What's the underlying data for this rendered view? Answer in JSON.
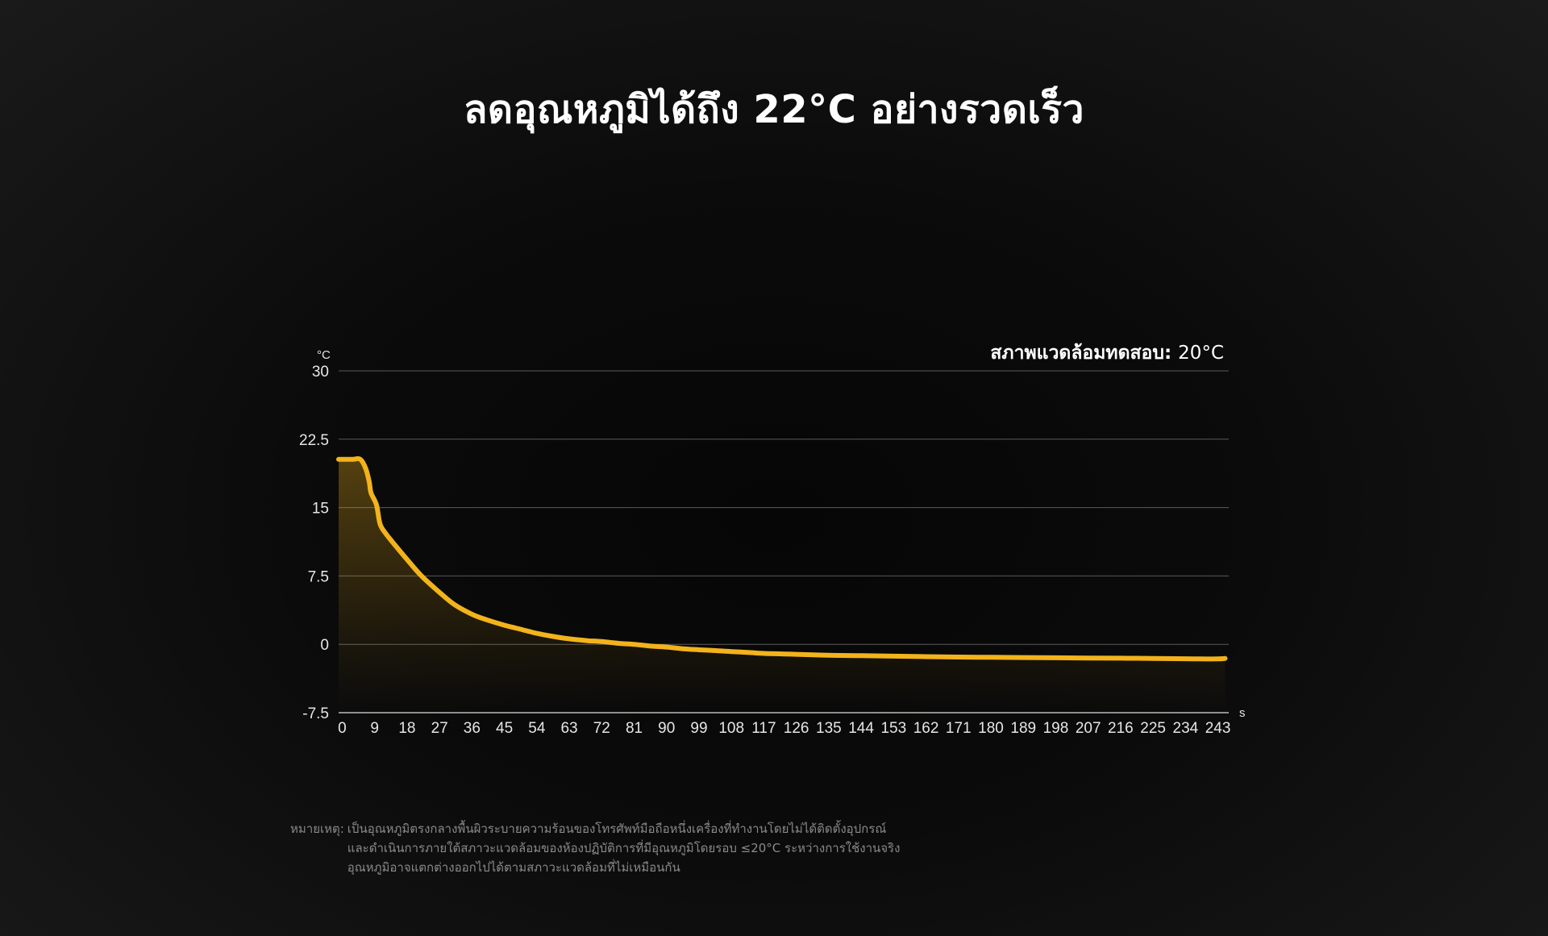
{
  "header": {
    "title": "ลดอุณหภูมิได้ถึง 22°C อย่างรวดเร็ว"
  },
  "environment": {
    "label": "สภาพแวดล้อมทดสอบ:",
    "value": "20°C"
  },
  "note": {
    "label": "หมายเหตุ:",
    "lines": [
      "เป็นอุณหภูมิตรงกลางพื้นผิวระบายความร้อนของโทรศัพท์มือถือหนึ่งเครื่องที่ทำงานโดยไม่ได้ติดตั้งอุปกรณ์",
      "และดำเนินการภายใต้สภาวะแวดล้อมของห้องปฏิบัติการที่มีอุณหภูมิโดยรอบ ≤20°C ระหว่างการใช้งานจริง",
      "อุณหภูมิอาจแตกต่างออกไปได้ตามสภาวะแวดล้อมที่ไม่เหมือนกัน"
    ]
  },
  "colors": {
    "line": "#f2b31b",
    "grid": "#5a5a5a",
    "baseline": "#bbbbbb"
  },
  "chart_data": {
    "type": "area",
    "title": "",
    "xlabel": "s",
    "ylabel": "°C",
    "ylim": [
      -7.5,
      30
    ],
    "xlim": [
      -1,
      246
    ],
    "yticks": [
      "30",
      "22.5",
      "15",
      "7.5",
      "0",
      "-7.5"
    ],
    "ytick_values": [
      30,
      22.5,
      15,
      7.5,
      0,
      -7.5
    ],
    "xticks": [
      "0",
      "9",
      "18",
      "27",
      "36",
      "45",
      "54",
      "63",
      "72",
      "81",
      "90",
      "99",
      "108",
      "117",
      "126",
      "135",
      "144",
      "153",
      "162",
      "171",
      "180",
      "189",
      "198",
      "207",
      "216",
      "225",
      "234",
      "243"
    ],
    "grid": true,
    "series": [
      {
        "x": [
          -1,
          1,
          3,
          5,
          6.5,
          7.5,
          8,
          9.5,
          10.5,
          12,
          14,
          18,
          22,
          27,
          31,
          36,
          40,
          45,
          50,
          54,
          58,
          63,
          68,
          72,
          77,
          81,
          86,
          90,
          95,
          99,
          104,
          108,
          113,
          117,
          122,
          126,
          135,
          144,
          153,
          162,
          171,
          180,
          189,
          198,
          207,
          216,
          225,
          234,
          238,
          243,
          245
        ],
        "values": [
          20.3,
          20.3,
          20.3,
          20.3,
          19.3,
          17.8,
          16.6,
          15.3,
          13.2,
          12.2,
          11.2,
          9.3,
          7.5,
          5.7,
          4.4,
          3.3,
          2.7,
          2.1,
          1.6,
          1.2,
          0.9,
          0.6,
          0.4,
          0.3,
          0.1,
          0.0,
          -0.2,
          -0.3,
          -0.5,
          -0.6,
          -0.7,
          -0.8,
          -0.9,
          -1.0,
          -1.05,
          -1.1,
          -1.2,
          -1.25,
          -1.3,
          -1.35,
          -1.4,
          -1.42,
          -1.45,
          -1.48,
          -1.5,
          -1.52,
          -1.55,
          -1.58,
          -1.6,
          -1.6,
          -1.55
        ]
      }
    ]
  }
}
